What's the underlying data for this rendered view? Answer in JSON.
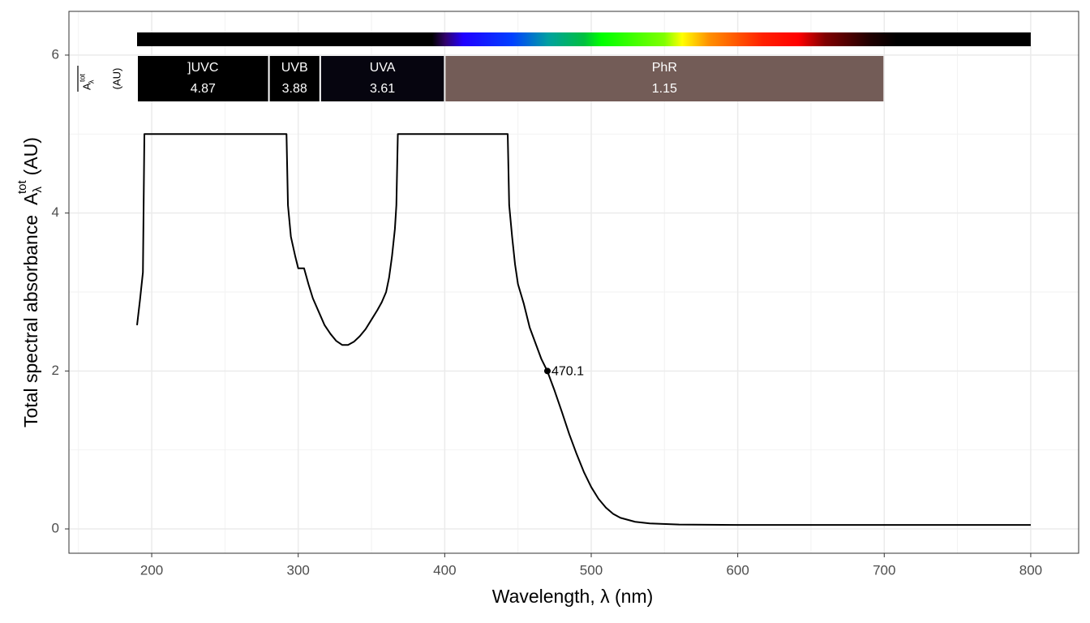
{
  "chart_data": {
    "type": "line",
    "x_label": "Wavelength, λ (nm)",
    "y_label": {
      "text": "Total  spectral  absorbance",
      "symbol": "A",
      "sub": "λ",
      "sup": "tot",
      "unit": "(AU)"
    },
    "band_label": {
      "symbol": "A",
      "sub": "λ",
      "sup": "tot",
      "unit": "(AU)"
    },
    "series": [
      {
        "color": "#000000",
        "x": [
          190,
          192,
          194,
          195,
          292,
          293,
          295,
          298,
          300,
          304,
          307,
          310,
          314,
          318,
          322,
          326,
          330,
          334,
          338,
          342,
          346,
          350,
          354,
          357,
          360,
          362,
          364,
          366,
          367,
          368,
          443,
          444,
          446,
          448,
          450,
          454,
          458,
          462,
          466,
          470,
          475,
          480,
          485,
          490,
          495,
          500,
          505,
          510,
          515,
          520,
          530,
          540,
          560,
          600,
          700,
          800
        ],
        "values": [
          2.58,
          2.9,
          3.25,
          5,
          5,
          4.1,
          3.7,
          3.45,
          3.3,
          3.3,
          3.1,
          2.92,
          2.75,
          2.58,
          2.47,
          2.38,
          2.33,
          2.33,
          2.37,
          2.44,
          2.53,
          2.65,
          2.77,
          2.87,
          3.0,
          3.18,
          3.45,
          3.8,
          4.1,
          5,
          5,
          4.1,
          3.7,
          3.35,
          3.1,
          2.85,
          2.55,
          2.35,
          2.15,
          2.0,
          1.75,
          1.48,
          1.2,
          0.95,
          0.72,
          0.53,
          0.38,
          0.27,
          0.19,
          0.14,
          0.09,
          0.07,
          0.055,
          0.05,
          0.05,
          0.05
        ]
      }
    ],
    "annotations": [
      {
        "x": 470.1,
        "y": 2
      }
    ],
    "bands": [
      {
        "name": "]UVC",
        "start": 190,
        "end": 280,
        "value": 4.87,
        "color": "#000000"
      },
      {
        "name": "UVB",
        "start": 280,
        "end": 315,
        "value": 3.88,
        "color": "#000000"
      },
      {
        "name": "UVA",
        "start": 315,
        "end": 400,
        "value": 3.61,
        "color": "#06050f"
      },
      {
        "name": "PhR",
        "start": 400,
        "end": 700,
        "value": 1.15,
        "color": "#735c57"
      }
    ],
    "xlim": [
      143.5,
      832.7
    ],
    "ylim": [
      -0.308,
      6.554
    ],
    "xticks": [
      200,
      300,
      400,
      500,
      600,
      700,
      800
    ],
    "yticks": [
      0,
      2,
      4,
      6
    ],
    "grid": true
  }
}
